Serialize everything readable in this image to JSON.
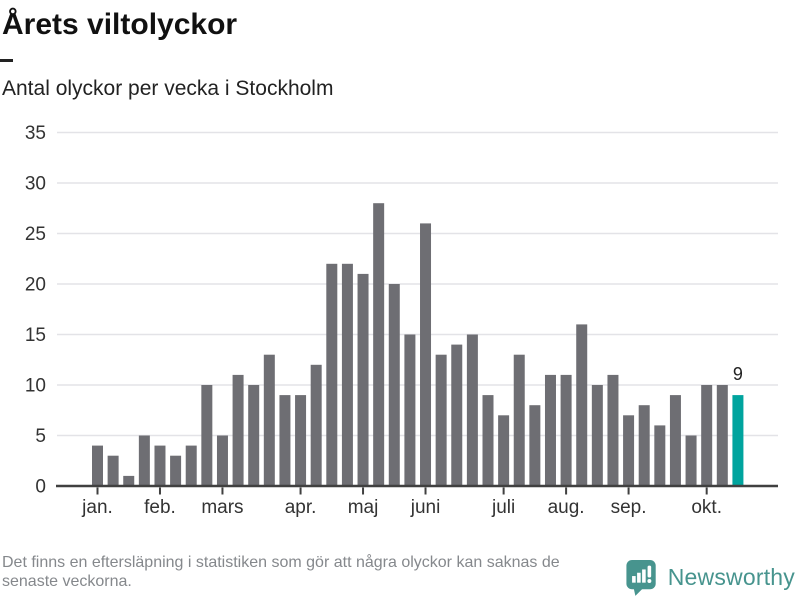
{
  "header": {
    "title": "Årets viltolyckor",
    "subtitle": "Antal olyckor per vecka i Stockholm"
  },
  "chart_data": {
    "type": "bar",
    "title": "Årets viltolyckor",
    "subtitle": "Antal olyckor per vecka i Stockholm",
    "x_unit": "vecka",
    "values": [
      4,
      3,
      1,
      5,
      4,
      3,
      4,
      10,
      5,
      11,
      10,
      13,
      9,
      9,
      12,
      22,
      22,
      21,
      28,
      20,
      15,
      26,
      13,
      14,
      15,
      9,
      7,
      13,
      8,
      11,
      11,
      16,
      10,
      11,
      7,
      8,
      6,
      9,
      5,
      10,
      10,
      9
    ],
    "highlight_index": 41,
    "highlight_label": "9",
    "y_ticks": [
      0,
      5,
      10,
      15,
      20,
      25,
      30,
      35
    ],
    "ylim": [
      0,
      35
    ],
    "grid": true,
    "month_ticks": [
      {
        "label": "jan.",
        "index": 0
      },
      {
        "label": "feb.",
        "index": 4
      },
      {
        "label": "mars",
        "index": 8
      },
      {
        "label": "apr.",
        "index": 13
      },
      {
        "label": "maj",
        "index": 17
      },
      {
        "label": "juni",
        "index": 21
      },
      {
        "label": "juli",
        "index": 26
      },
      {
        "label": "aug.",
        "index": 30
      },
      {
        "label": "sep.",
        "index": 34
      },
      {
        "label": "okt.",
        "index": 39
      }
    ]
  },
  "footer": {
    "note_line1": "Det finns en eftersläpning i statistiken som gör att några olyckor kan saknas de",
    "note_line2": "senaste veckorna.",
    "brand_name": "Newsworthy"
  },
  "colors": {
    "bar": "#6e6e73",
    "highlight": "#00a49e",
    "brand": "#47948e",
    "grid": "#e3e3e7",
    "axis": "#404040",
    "tick_text": "#333333",
    "value_text": "#222222",
    "note_text": "#85888c"
  }
}
